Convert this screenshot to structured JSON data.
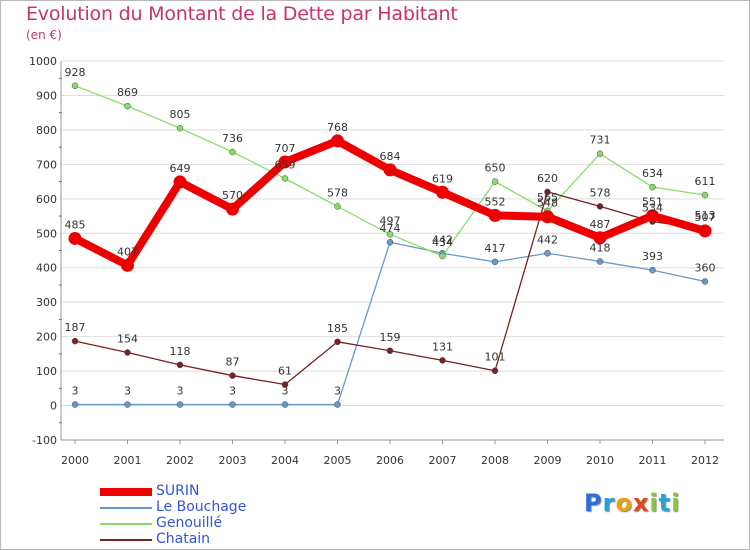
{
  "title": "Evolution du Montant de la Dette par Habitant",
  "unit": "(en €)",
  "logo": {
    "letters": [
      {
        "char": "P",
        "color": "#2e6fd6"
      },
      {
        "char": "r",
        "color": "#2e9fd6"
      },
      {
        "char": "o",
        "color": "#e8a21a"
      },
      {
        "char": "x",
        "color": "#e04a1a"
      },
      {
        "char": "i",
        "color": "#8cc63f"
      },
      {
        "char": "t",
        "color": "#2e9fd6"
      },
      {
        "char": "i",
        "color": "#8cc63f"
      }
    ]
  },
  "chart_data": {
    "type": "line",
    "x": [
      "2000",
      "2001",
      "2002",
      "2003",
      "2004",
      "2005",
      "2006",
      "2007",
      "2008",
      "2009",
      "2010",
      "2011",
      "2012"
    ],
    "ylim": [
      -100,
      1000
    ],
    "yticks": [
      "-100",
      "0",
      "100",
      "200",
      "300",
      "400",
      "500",
      "600",
      "700",
      "800",
      "900",
      "1000"
    ],
    "grid": "horizontal",
    "legend_position": "bottom-left",
    "series": [
      {
        "name": "SURIN",
        "color": "#ee0000",
        "values": [
          485,
          407,
          649,
          570,
          707,
          768,
          684,
          619,
          552,
          548,
          487,
          551,
          507
        ],
        "labels": [
          "485",
          "407",
          "649",
          "570",
          "707",
          "768",
          "684",
          "619",
          "552",
          "548",
          "487",
          "551",
          "507"
        ]
      },
      {
        "name": "Le Bouchage",
        "color": "#6699cc",
        "values": [
          3,
          3,
          3,
          3,
          3,
          3,
          474,
          442,
          417,
          442,
          418,
          393,
          360
        ],
        "labels": [
          "3",
          "3",
          "3",
          "3",
          "3",
          "3",
          "474",
          "442",
          "417",
          "442",
          "418",
          "393",
          "360"
        ]
      },
      {
        "name": "Genouillé",
        "color": "#88dd66",
        "values": [
          928,
          869,
          805,
          736,
          659,
          578,
          497,
          434,
          650,
          565,
          731,
          634,
          611
        ],
        "labels": [
          "928",
          "869",
          "805",
          "736",
          "659",
          "578",
          "497",
          "434",
          "650",
          "565",
          "731",
          "634",
          "611"
        ]
      },
      {
        "name": "Chatain",
        "color": "#772222",
        "values": [
          187,
          154,
          118,
          87,
          61,
          185,
          159,
          131,
          101,
          620,
          578,
          534,
          513
        ],
        "labels": [
          "187",
          "154",
          "118",
          "87",
          "61",
          "185",
          "159",
          "131",
          "101",
          "620",
          "578",
          "534",
          "513"
        ]
      }
    ]
  }
}
